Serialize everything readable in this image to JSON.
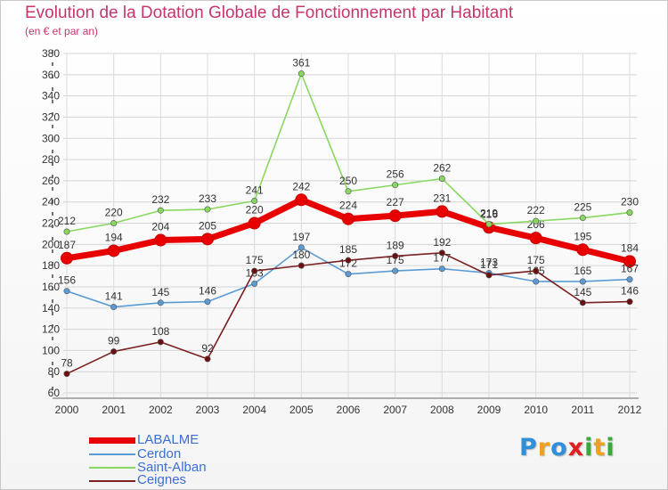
{
  "chart_data": {
    "type": "line",
    "title": "Evolution de la Dotation Globale de Fonctionnement par Habitant",
    "subtitle": "(en € et par an)",
    "categories": [
      "2000",
      "2001",
      "2002",
      "2003",
      "2004",
      "2005",
      "2006",
      "2007",
      "2008",
      "2009",
      "2010",
      "2011",
      "2012"
    ],
    "ylim": [
      60,
      380
    ],
    "yticks": [
      60,
      80,
      100,
      120,
      140,
      160,
      180,
      200,
      220,
      240,
      260,
      280,
      300,
      320,
      340,
      360,
      380
    ],
    "grid": true,
    "legend_position": "bottom-left",
    "series": [
      {
        "name": "LABALME",
        "color": "#e80000",
        "values": [
          187,
          194,
          204,
          205,
          220,
          242,
          224,
          227,
          231,
          216,
          206,
          195,
          184
        ]
      },
      {
        "name": "Cerdon",
        "color": "#5b9bd5",
        "values": [
          156,
          141,
          145,
          146,
          163,
          197,
          172,
          175,
          177,
          173,
          165,
          165,
          167
        ]
      },
      {
        "name": "Saint-Alban",
        "color": "#88d860",
        "values": [
          212,
          220,
          232,
          233,
          241,
          361,
          250,
          256,
          262,
          219,
          222,
          225,
          230
        ]
      },
      {
        "name": "Ceignes",
        "color": "#7a2020",
        "values": [
          78,
          99,
          108,
          92,
          175,
          180,
          185,
          189,
          192,
          171,
          175,
          145,
          146
        ]
      }
    ]
  },
  "logo": {
    "text": "Proxiti",
    "letters": [
      "P",
      "r",
      "o",
      "x",
      "i",
      "t",
      "i"
    ]
  }
}
